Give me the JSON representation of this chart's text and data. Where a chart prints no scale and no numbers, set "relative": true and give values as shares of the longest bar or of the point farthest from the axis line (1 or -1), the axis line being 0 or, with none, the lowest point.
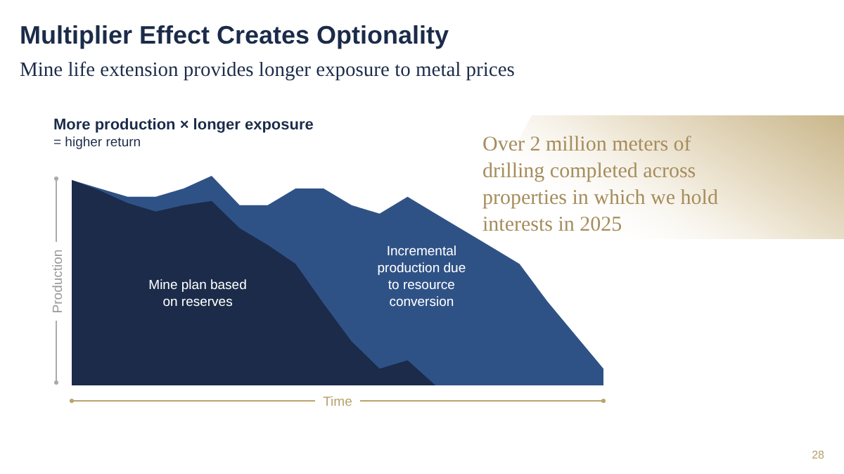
{
  "chart_data": {
    "type": "area",
    "title": "Multiplier Effect Creates Optionality",
    "subtitle": "Mine life extension provides longer exposure to metal prices",
    "xlabel": "Time",
    "ylabel": "Production",
    "relative": true,
    "tick_labels": false,
    "annotations": [
      "More production × longer exposure",
      "= higher return",
      "Over 2 million meters of drilling completed across properties in which we hold interests in 2025",
      "28"
    ],
    "categories": [
      null,
      null,
      null,
      null,
      null,
      null,
      null,
      null,
      null,
      null,
      null,
      null,
      null,
      null,
      null,
      null,
      null,
      null,
      null,
      null
    ],
    "series": [
      {
        "name": "Incremental production due to resource conversion",
        "color": "#2f5286",
        "values": [
          0.98,
          0.94,
          0.9,
          0.9,
          0.94,
          1,
          0.86,
          0.86,
          0.94,
          0.94,
          0.86,
          0.82,
          0.9,
          0.82,
          0.74,
          0.66,
          0.58,
          0.4,
          0.24,
          0.08
        ]
      },
      {
        "name": "Mine plan based on reserves",
        "color": "#1b2b49",
        "values": [
          0.98,
          0.93,
          0.87,
          0.83,
          0.86,
          0.88,
          0.75,
          0.67,
          0.58,
          0.39,
          0.21,
          0.08,
          0.12,
          0,
          0,
          0,
          0,
          0,
          0,
          0
        ]
      }
    ]
  }
}
